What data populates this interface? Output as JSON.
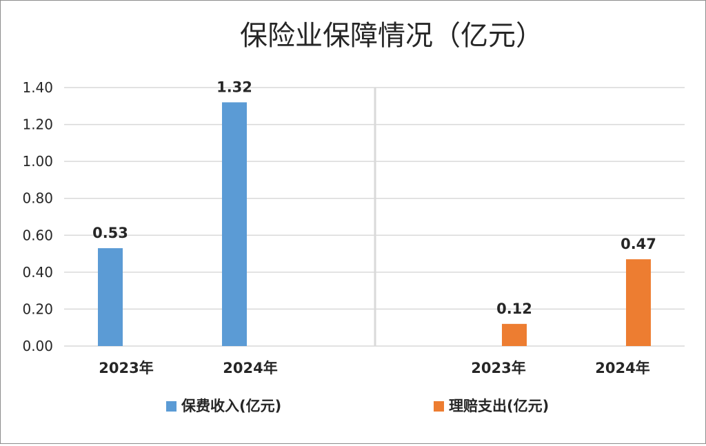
{
  "chart_data": {
    "type": "bar",
    "title": "保险业保障情况（亿元）",
    "xlabel": "",
    "ylabel": "",
    "ylim": [
      0,
      1.4
    ],
    "yticks": [
      "0.00",
      "0.20",
      "0.40",
      "0.60",
      "0.80",
      "1.00",
      "1.20",
      "1.40"
    ],
    "grid": true,
    "legend_position": "bottom",
    "groups": [
      {
        "series": "保费收入(亿元)",
        "color": "#5b9bd5",
        "categories": [
          "2023年",
          "2024年"
        ],
        "values": [
          0.53,
          1.32
        ],
        "labels": [
          "0.53",
          "1.32"
        ]
      },
      {
        "series": "理赔支出(亿元)",
        "color": "#ed7d31",
        "categories": [
          "2023年",
          "2024年"
        ],
        "values": [
          0.12,
          0.47
        ],
        "labels": [
          "0.12",
          "0.47"
        ]
      }
    ],
    "series": [
      {
        "name": "保费收入(亿元)",
        "color": "#5b9bd5"
      },
      {
        "name": "理赔支出(亿元)",
        "color": "#ed7d31"
      }
    ]
  }
}
